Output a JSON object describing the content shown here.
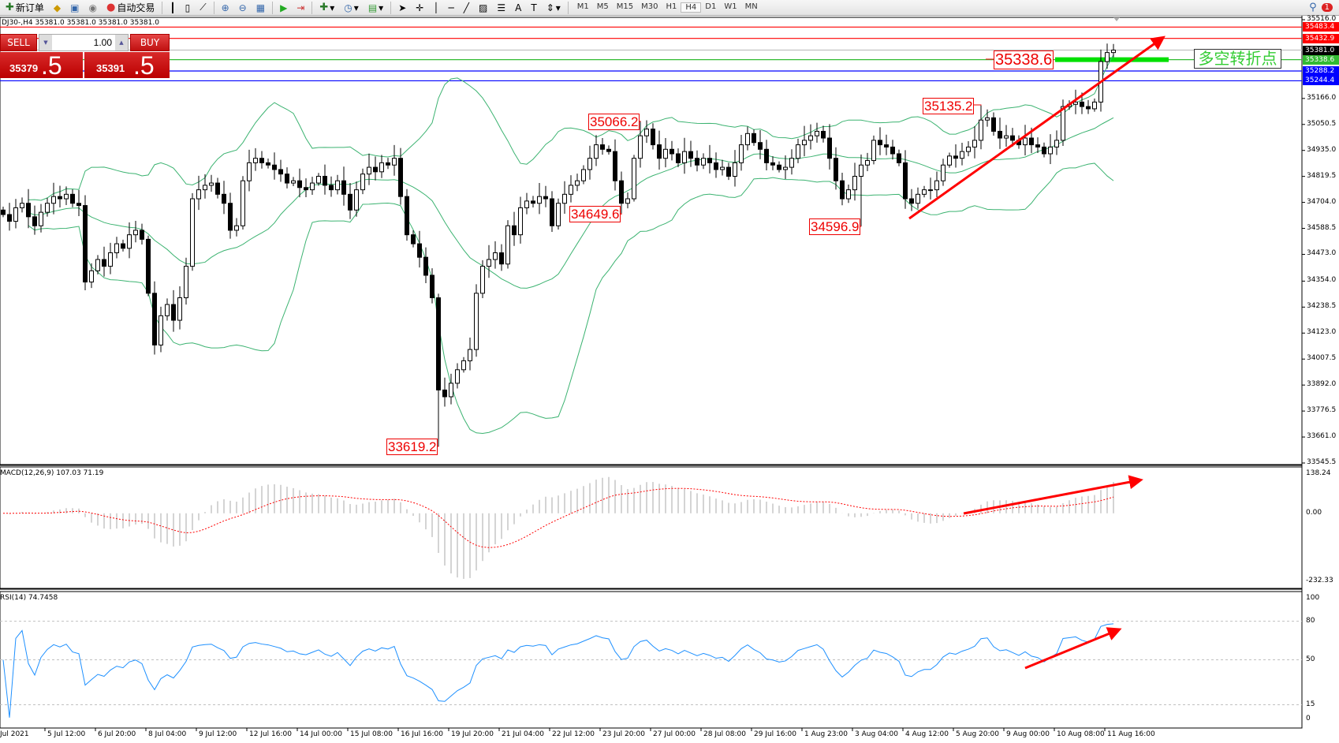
{
  "toolbar": {
    "new_order": "新订单",
    "auto_trading": "自动交易",
    "timeframes": [
      "M1",
      "M5",
      "M15",
      "M30",
      "H1",
      "H4",
      "D1",
      "W1",
      "MN"
    ],
    "active_timeframe": "H4",
    "notification_count": "1"
  },
  "header": {
    "symbol_info": "DJ30-,H4  35381.0 35381.0 35381.0 35381.0"
  },
  "trade_panel": {
    "sell": "SELL",
    "buy": "BUY",
    "lot": "1.00",
    "bid_small": "35379",
    "bid_big": ".5",
    "ask_small": "35391",
    "ask_big": ".5"
  },
  "price_axis": {
    "ticks": [
      "35516.0",
      "35166.0",
      "35050.5",
      "34935.0",
      "34819.5",
      "34704.0",
      "34588.5",
      "34473.0",
      "34354.0",
      "34238.5",
      "34123.0",
      "34007.5",
      "33892.0",
      "33776.5",
      "33661.0",
      "33545.5"
    ],
    "max": 35516.0,
    "min": 33545.5
  },
  "hlines": [
    {
      "label": "35483.4",
      "value": 35483.4,
      "color": "#ff0000"
    },
    {
      "label": "35432.9",
      "value": 35432.9,
      "color": "#ff0000"
    },
    {
      "label": "35381.0",
      "value": 35381.0,
      "color": "#c0c0c0",
      "tag": "#000000"
    },
    {
      "label": "35338.6",
      "value": 35338.6,
      "color": "#33bb33",
      "tag": "#33bb33"
    },
    {
      "label": "35288.2",
      "value": 35288.2,
      "color": "#0000ff"
    },
    {
      "label": "35244.4",
      "value": 35244.4,
      "color": "#0000ff"
    }
  ],
  "annotations": {
    "turning_point": "多空转折点",
    "levels": [
      {
        "label": "35338.6"
      },
      {
        "label": "35066.2",
        "bar": 101,
        "type": "high",
        "value": 35066.2
      },
      {
        "label": "34649.6",
        "bar": 98,
        "type": "low",
        "value": 34649.6
      },
      {
        "label": "34596.9",
        "bar": 136,
        "type": "low",
        "value": 34596.9
      },
      {
        "label": "35135.2",
        "bar": 155,
        "type": "high",
        "value": 35135.2
      },
      {
        "label": "33619.2",
        "bar": 69,
        "type": "low",
        "value": 33619.2
      }
    ]
  },
  "macd": {
    "label": "MACD(12,26,9) 107.03 71.19",
    "ticks": [
      "138.24",
      "0.00",
      "-232.33"
    ],
    "max": 138.24,
    "min": -232.33
  },
  "rsi": {
    "label": "RSI(14) 74.7458",
    "ticks": [
      "100",
      "80",
      "50",
      "15",
      "0"
    ],
    "levels": [
      80,
      50,
      15
    ]
  },
  "time_axis": [
    "Jul 2021",
    "5 Jul 12:00",
    "6 Jul 20:00",
    "8 Jul 04:00",
    "9 Jul 12:00",
    "12 Jul 16:00",
    "14 Jul 00:00",
    "15 Jul 08:00",
    "16 Jul 16:00",
    "19 Jul 20:00",
    "21 Jul 04:00",
    "22 Jul 12:00",
    "23 Jul 20:00",
    "27 Jul 00:00",
    "28 Jul 08:00",
    "29 Jul 16:00",
    "1 Aug 23:00",
    "3 Aug 04:00",
    "4 Aug 12:00",
    "5 Aug 20:00",
    "9 Aug 00:00",
    "10 Aug 08:00",
    "11 Aug 16:00"
  ],
  "chart_data": {
    "type": "candlestick",
    "timeframe": "H4",
    "indicators": [
      "Bollinger Bands",
      "MACD(12,26,9)",
      "RSI(14)"
    ],
    "colors": {
      "bands": "#3cb371",
      "up": "#ffffff",
      "down": "#000000",
      "macd_signal": "#ff0000",
      "rsi": "#1e90ff",
      "arrows": "#ff0000"
    },
    "closes": [
      34650,
      34620,
      34680,
      34700,
      34640,
      34600,
      34660,
      34700,
      34730,
      34720,
      34740,
      34700,
      34690,
      34350,
      34400,
      34450,
      34420,
      34480,
      34520,
      34500,
      34560,
      34580,
      34540,
      34300,
      34070,
      34200,
      34250,
      34180,
      34280,
      34420,
      34720,
      34760,
      34780,
      34790,
      34740,
      34700,
      34580,
      34600,
      34800,
      34880,
      34900,
      34880,
      34870,
      34850,
      34830,
      34790,
      34800,
      34770,
      34760,
      34790,
      34820,
      34780,
      34760,
      34800,
      34740,
      34670,
      34760,
      34830,
      34860,
      34840,
      34880,
      34870,
      34900,
      34730,
      34560,
      34520,
      34460,
      34380,
      34280,
      33870,
      33840,
      33900,
      33960,
      34000,
      34050,
      34300,
      34420,
      34450,
      34480,
      34430,
      34600,
      34560,
      34680,
      34710,
      34700,
      34730,
      34720,
      34600,
      34700,
      34740,
      34780,
      34800,
      34850,
      34900,
      34960,
      34940,
      34930,
      34800,
      34700,
      34720,
      34900,
      35000,
      35030,
      34960,
      34900,
      34940,
      34920,
      34880,
      34930,
      34900,
      34870,
      34900,
      34880,
      34850,
      34860,
      34820,
      34880,
      34960,
      35010,
      34970,
      34940,
      34880,
      34870,
      34850,
      34860,
      34900,
      34960,
      34980,
      35000,
      35020,
      34990,
      34900,
      34800,
      34720,
      34760,
      34820,
      34870,
      34890,
      34980,
      34960,
      34950,
      34920,
      34880,
      34720,
      34700,
      34740,
      34760,
      34760,
      34800,
      34870,
      34910,
      34900,
      34930,
      34950,
      34980,
      35070,
      35080,
      35020,
      34990,
      35000,
      34980,
      34960,
      34990,
      34960,
      34950,
      34920,
      34950,
      34980,
      35130,
      35140,
      35150,
      35130,
      35120,
      35150,
      35330,
      35370,
      35381
    ]
  }
}
